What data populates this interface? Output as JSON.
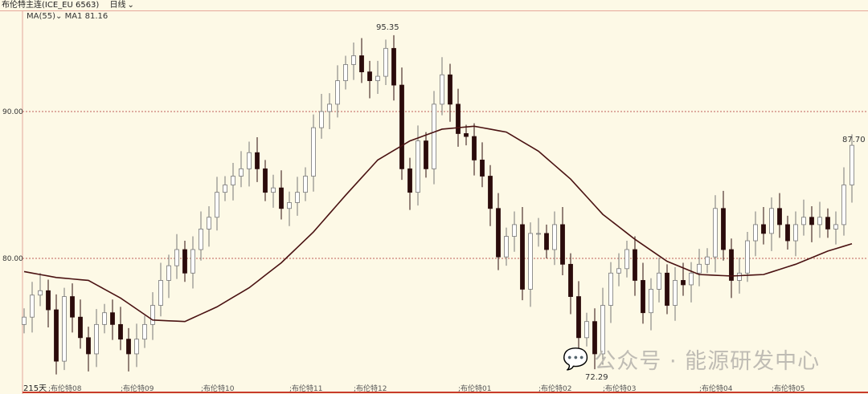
{
  "header": {
    "symbol": "布伦特主连(ICE_EU 6563)",
    "period": "日线"
  },
  "indicator": {
    "name": "MA(55)",
    "label": "MA1",
    "value": "81.16"
  },
  "watermark": "公众号 · 能源研发中心",
  "footer": {
    "days": "215天"
  },
  "colors": {
    "background": "#fdf9e6",
    "down": "#2b0b0b",
    "up": "#ffffff",
    "ma": "#4a1212",
    "gridline": "#c0605a"
  },
  "chart_data": {
    "type": "candlestick",
    "y_ticks": [
      {
        "value": 90,
        "label": "90.00"
      },
      {
        "value": 80,
        "label": "80.00"
      }
    ],
    "ylim": [
      71.5,
      96.5
    ],
    "x_ticks": [
      "布伦特08",
      "布伦特09",
      "布伦特10",
      "布伦特11",
      "布伦特12",
      "布伦特01",
      "布伦特02",
      "布伦特03",
      "布伦特04",
      "布伦特05"
    ],
    "x_tick_index": [
      3,
      12,
      22,
      33,
      41,
      54,
      64,
      72,
      84,
      93
    ],
    "annotations": [
      {
        "label": "95.35",
        "value": 95.35,
        "index": 45
      },
      {
        "label": "72.29",
        "value": 72.29,
        "index": 71
      },
      {
        "label": "87.70",
        "value": 87.7,
        "index": 103
      }
    ],
    "closes": [
      76,
      77.5,
      77.8,
      76.5,
      73,
      77.4,
      76,
      74.6,
      73.5,
      75.5,
      76.3,
      75.5,
      74.5,
      73.5,
      74.5,
      75.5,
      76.8,
      78.5,
      79.5,
      80.6,
      79,
      80.6,
      82,
      82.8,
      84.5,
      85,
      85.6,
      86.1,
      87.2,
      86.1,
      84.5,
      84.8,
      83.4,
      83.8,
      84.5,
      85.6,
      88.9,
      90,
      90.5,
      92.1,
      93.2,
      93.8,
      92.7,
      92.1,
      92.4,
      94.3,
      91.8,
      86.1,
      84.5,
      88,
      86.1,
      90.5,
      92.5,
      90.5,
      88.5,
      88.3,
      86.7,
      85.6,
      83.4,
      80.1,
      81.5,
      82.3,
      77.9,
      81.7,
      81.7,
      80.6,
      82.3,
      79.6,
      77.4,
      74.6,
      75.7,
      73.5,
      76.8,
      79,
      79.3,
      80.6,
      78.5,
      76.3,
      77.9,
      79,
      76.8,
      78.5,
      78.2,
      79,
      79.6,
      80.1,
      83.4,
      80.6,
      78.5,
      79,
      81.2,
      82.3,
      81.7,
      83.4,
      82.3,
      81.2,
      82.3,
      82.8,
      82.3,
      82.8,
      82,
      82.3,
      85,
      87.7
    ],
    "ma55_every_4": [
      79.1,
      78.7,
      78.5,
      77.3,
      75.8,
      75.7,
      76.7,
      78.0,
      79.7,
      81.8,
      84.3,
      86.7,
      88.0,
      88.8,
      89.0,
      88.6,
      87.3,
      85.4,
      83.0,
      81.3,
      79.8,
      78.9,
      78.8,
      78.9,
      79.6,
      80.5,
      81.16
    ]
  }
}
